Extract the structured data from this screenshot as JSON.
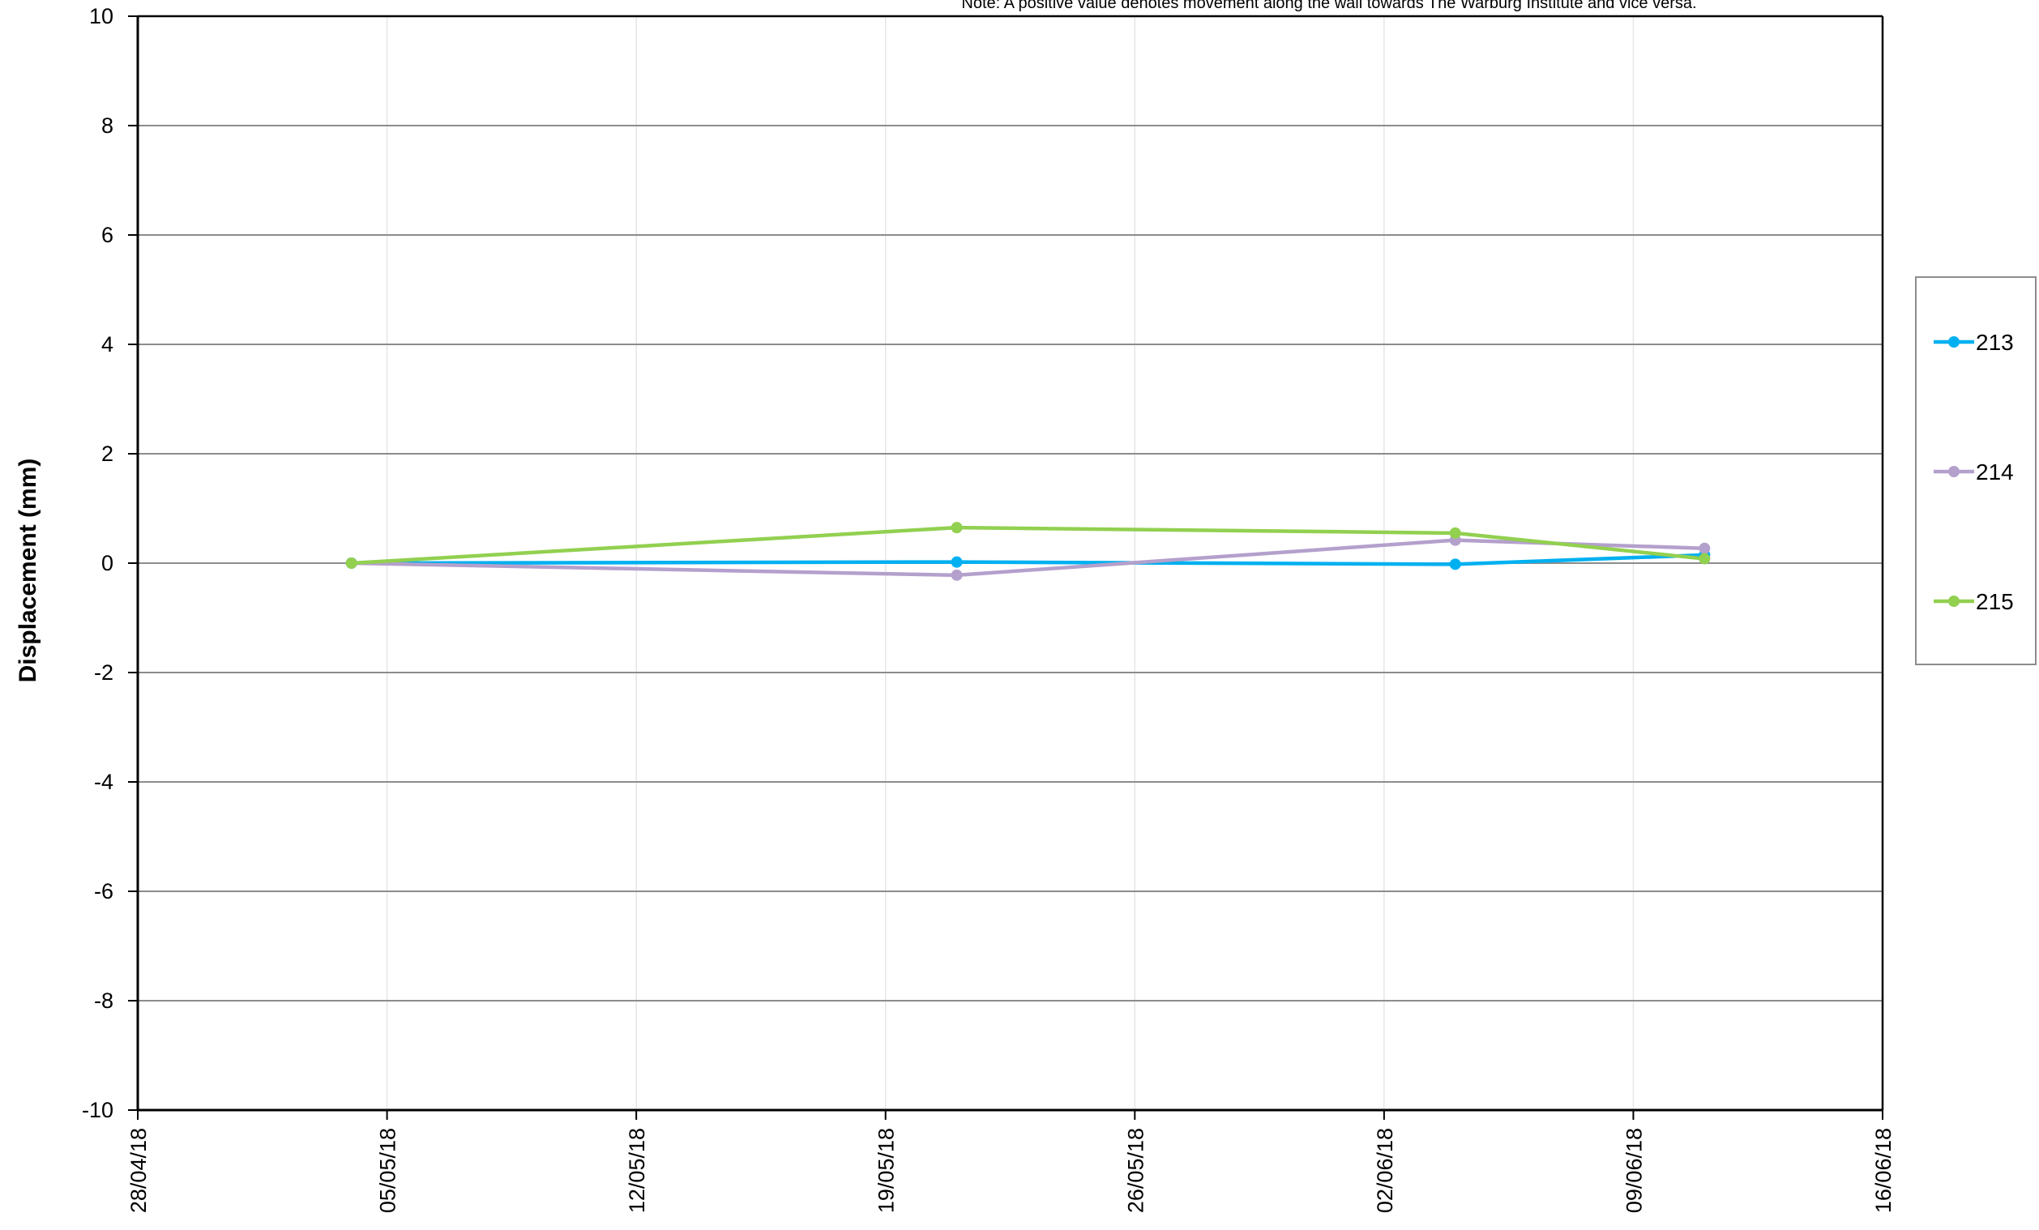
{
  "chart_data": {
    "type": "line",
    "note": "Note: A positive value denotes movement along the wall towards The Warburg Institute and vice versa.",
    "ylabel": "Displacement (mm)",
    "xlabel": "",
    "ylim": [
      -10,
      10
    ],
    "yticks": [
      "10",
      "8",
      "6",
      "4",
      "2",
      "0",
      "-2",
      "-4",
      "-6",
      "-8",
      "-10"
    ],
    "xlim": [
      "2018-04-28",
      "2018-06-16"
    ],
    "xticks": [
      "28/04/18",
      "05/05/18",
      "12/05/18",
      "19/05/18",
      "26/05/18",
      "02/06/18",
      "09/06/18",
      "16/06/18"
    ],
    "grid": true,
    "legend_position": "right",
    "x": [
      "2018-05-04",
      "2018-05-21",
      "2018-06-04",
      "2018-06-11"
    ],
    "series": [
      {
        "name": "213",
        "color": "#00B0F0",
        "values": [
          0.0,
          0.02,
          -0.02,
          0.15
        ]
      },
      {
        "name": "214",
        "color": "#B4A0CC",
        "values": [
          0.0,
          -0.22,
          0.42,
          0.27
        ]
      },
      {
        "name": "215",
        "color": "#92D050",
        "values": [
          0.0,
          0.65,
          0.55,
          0.08
        ]
      }
    ]
  }
}
